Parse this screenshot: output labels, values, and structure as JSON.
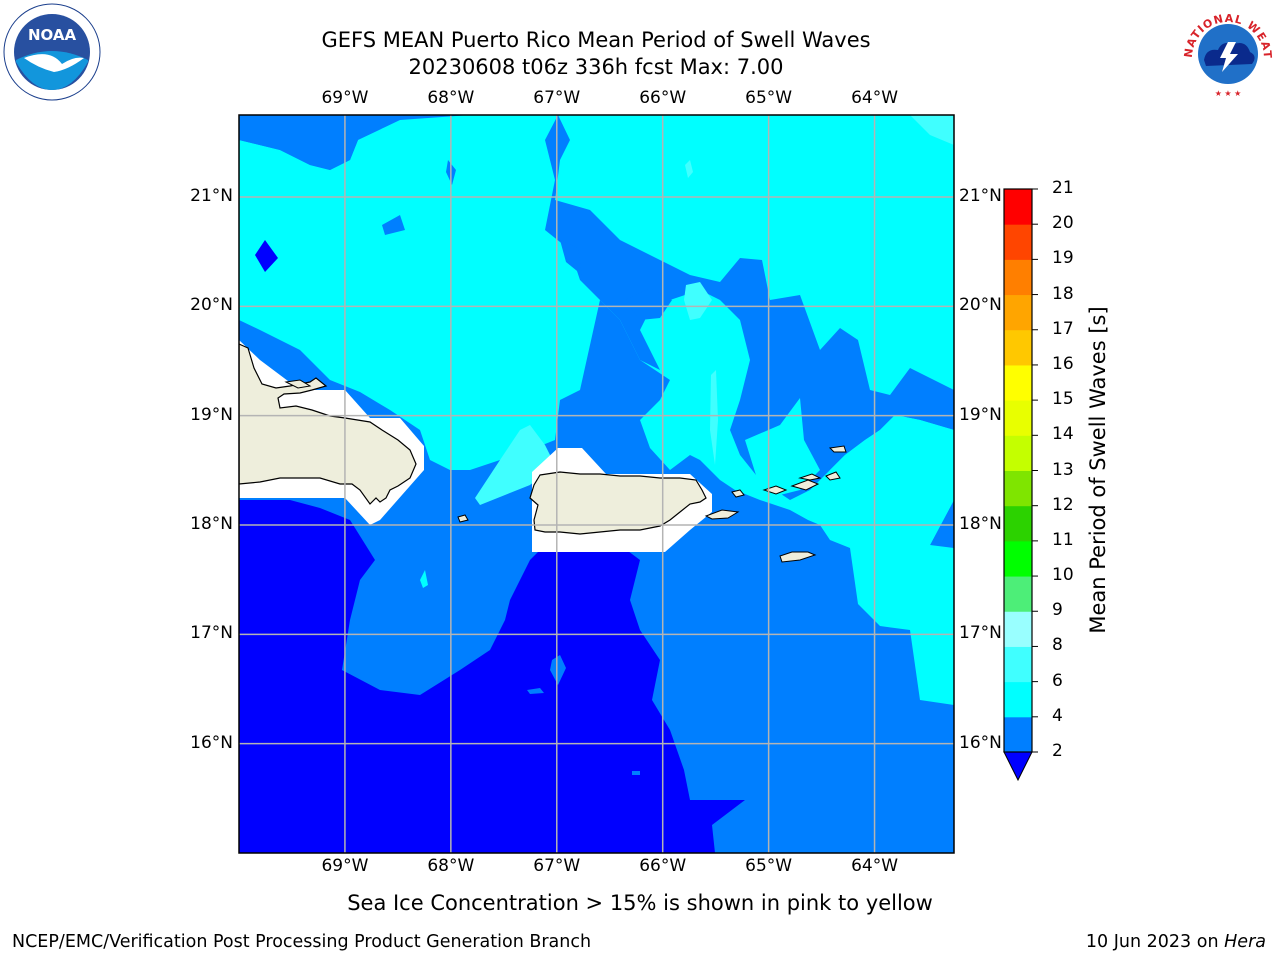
{
  "title": {
    "line1": "GEFS MEAN Puerto Rico Mean Period of Swell Waves",
    "line2": "20230608 t06z 336h fcst   Max: 7.00"
  },
  "map": {
    "lon_labels": [
      "69°W",
      "68°W",
      "67°W",
      "66°W",
      "65°W",
      "64°W"
    ],
    "lat_labels": [
      "21°N",
      "20°N",
      "19°N",
      "18°N",
      "17°N",
      "16°N"
    ],
    "lon_values": [
      -69,
      -68,
      -67,
      -66,
      -65,
      -64
    ],
    "lat_values": [
      21,
      20,
      19,
      18,
      17,
      16
    ],
    "extent": {
      "lon_min": -70.0,
      "lon_max": -63.25,
      "lat_min": 15.0,
      "lat_max": 21.75
    },
    "land_color": "#eeeedc",
    "masked_color": "#ffffff"
  },
  "colorbar": {
    "title": "Mean Period of Swell Waves [s]",
    "levels": [
      "21",
      "20",
      "19",
      "18",
      "17",
      "16",
      "15",
      "14",
      "13",
      "12",
      "11",
      "10",
      "9",
      "8",
      "6",
      "4",
      "2"
    ],
    "level_values": [
      2,
      4,
      6,
      8,
      9,
      10,
      11,
      12,
      13,
      14,
      15,
      16,
      17,
      18,
      19,
      20,
      21
    ],
    "colors": [
      "#0000ff",
      "#007fff",
      "#00ffff",
      "#40ffff",
      "#99ffff",
      "#4dee78",
      "#00ff00",
      "#2cd200",
      "#7fe500",
      "#c4ff00",
      "#e8ff00",
      "#ffff00",
      "#ffc800",
      "#ffa500",
      "#ff7f00",
      "#ff4500",
      "#ff0000"
    ],
    "under_color": "#0000ff"
  },
  "note": "Sea Ice Concentration > 15% is shown in pink to yellow",
  "footer": {
    "left": "NCEP/EMC/Verification Post Processing Product Generation Branch",
    "right_date": "10 Jun 2023 on",
    "right_host": "Hera"
  },
  "logos": {
    "noaa_text": "NOAA",
    "nws_text": "NATIONAL WEATHER SERVICE"
  }
}
